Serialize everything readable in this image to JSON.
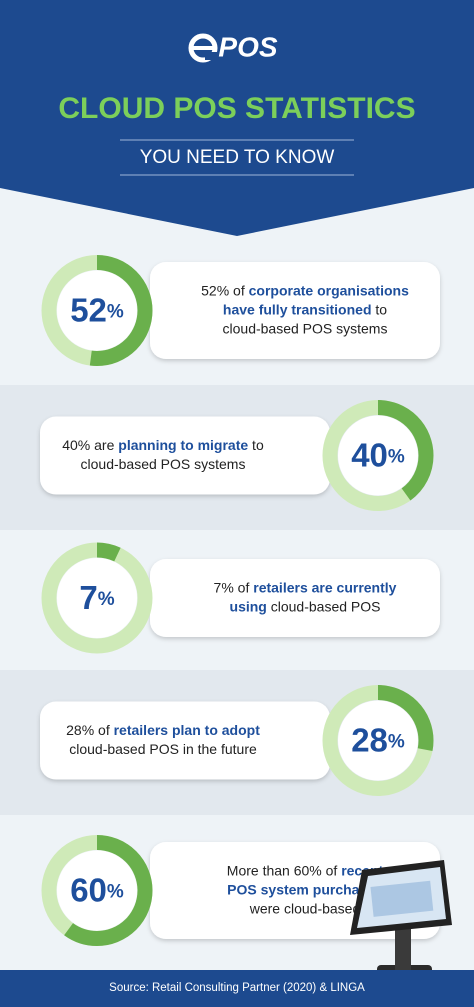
{
  "header": {
    "logo": "POS",
    "title": "CLOUD POS STATISTICS",
    "subtitle": "YOU NEED TO KNOW"
  },
  "stats": [
    {
      "value": 52,
      "value_label": "52%",
      "side": "left",
      "lines": [
        [
          {
            "text": "52% of ",
            "bold": false
          },
          {
            "text": "corporate organisations",
            "bold": true
          }
        ],
        [
          {
            "text": "have fully transitioned",
            "bold": true
          },
          {
            "text": " to",
            "bold": false
          }
        ],
        [
          {
            "text": "cloud-based POS systems",
            "bold": false
          }
        ]
      ]
    },
    {
      "value": 40,
      "value_label": "40%",
      "side": "right",
      "lines": [
        [
          {
            "text": "40% are ",
            "bold": false
          },
          {
            "text": "planning to migrate",
            "bold": true
          },
          {
            "text": " to",
            "bold": false
          }
        ],
        [
          {
            "text": "cloud-based POS systems",
            "bold": false
          }
        ]
      ]
    },
    {
      "value": 7,
      "value_label": "7%",
      "side": "left",
      "lines": [
        [
          {
            "text": "7% of ",
            "bold": false
          },
          {
            "text": "retailers are currently",
            "bold": true
          }
        ],
        [
          {
            "text": "using",
            "bold": true
          },
          {
            "text": " cloud-based POS",
            "bold": false
          }
        ]
      ]
    },
    {
      "value": 28,
      "value_label": "28%",
      "side": "right",
      "lines": [
        [
          {
            "text": "28% of ",
            "bold": false
          },
          {
            "text": "retailers plan to adopt",
            "bold": true
          }
        ],
        [
          {
            "text": "cloud-based POS in the future",
            "bold": false
          }
        ]
      ]
    },
    {
      "value": 60,
      "value_label": "60%",
      "side": "left",
      "lines": [
        [
          {
            "text": "More than 60% of ",
            "bold": false
          },
          {
            "text": "recent",
            "bold": true
          }
        ],
        [
          {
            "text": "POS system purchases",
            "bold": true
          }
        ],
        [
          {
            "text": "were cloud-based",
            "bold": false
          }
        ]
      ]
    }
  ],
  "footer": {
    "source": "Source:  Retail Consulting Partner (2020) & LINGA"
  }
}
